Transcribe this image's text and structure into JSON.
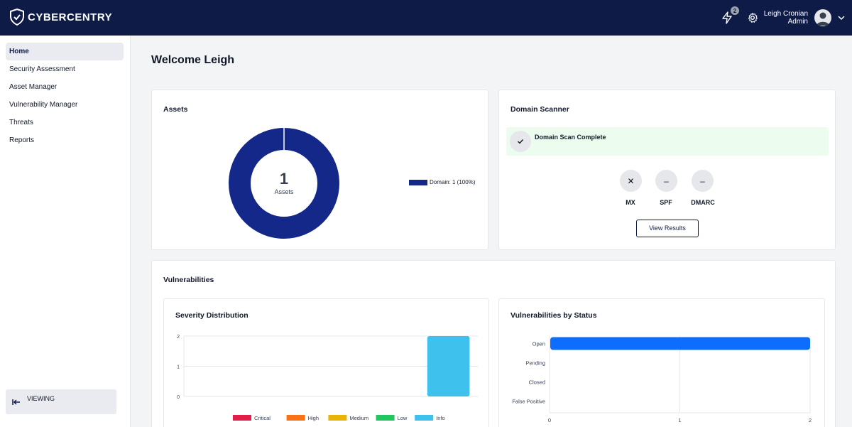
{
  "header": {
    "brand": "CYBERCENTRY",
    "notification_count": "2",
    "user_name": "Leigh Cronian",
    "user_role": "Admin"
  },
  "sidebar": {
    "items": [
      {
        "label": "Home",
        "active": true
      },
      {
        "label": "Security Assessment",
        "active": false
      },
      {
        "label": "Asset Manager",
        "active": false
      },
      {
        "label": "Vulnerability Manager",
        "active": false
      },
      {
        "label": "Threats",
        "active": false
      },
      {
        "label": "Reports",
        "active": false
      }
    ],
    "viewing_label": "VIEWING"
  },
  "main": {
    "welcome": "Welcome Leigh",
    "assets": {
      "title": "Assets",
      "total": "1",
      "total_label": "Assets",
      "legend_label": "Domain: 1 (100%)",
      "color": "#14288a"
    },
    "domain_scanner": {
      "title": "Domain Scanner",
      "status": "Domain Scan Complete",
      "checks": [
        {
          "label": "MX",
          "symbol": "✕"
        },
        {
          "label": "SPF",
          "symbol": "–"
        },
        {
          "label": "DMARC",
          "symbol": "–"
        }
      ],
      "button_label": "View Results"
    },
    "vulnerabilities": {
      "title": "Vulnerabilities"
    }
  },
  "chart_data": [
    {
      "type": "bar",
      "title": "Severity Distribution",
      "categories": [
        "Critical",
        "High",
        "Medium",
        "Low",
        "Info"
      ],
      "values": [
        0,
        0,
        0,
        0,
        2
      ],
      "colors": [
        "#e11d48",
        "#f97316",
        "#eab308",
        "#22c55e",
        "#3fc1ee"
      ],
      "yticks": [
        "0",
        "1",
        "2"
      ],
      "ylim": [
        0,
        2
      ],
      "legend": [
        "Critical",
        "High",
        "Medium",
        "Low",
        "Info"
      ]
    },
    {
      "type": "bar",
      "orientation": "horizontal",
      "title": "Vulnerabilities by Status",
      "categories": [
        "Open",
        "Pending",
        "Closed",
        "False Positive"
      ],
      "values": [
        2,
        0,
        0,
        0
      ],
      "color": "#0d6efd",
      "xticks": [
        "0",
        "1",
        "2"
      ],
      "xlim": [
        0,
        2
      ]
    }
  ]
}
